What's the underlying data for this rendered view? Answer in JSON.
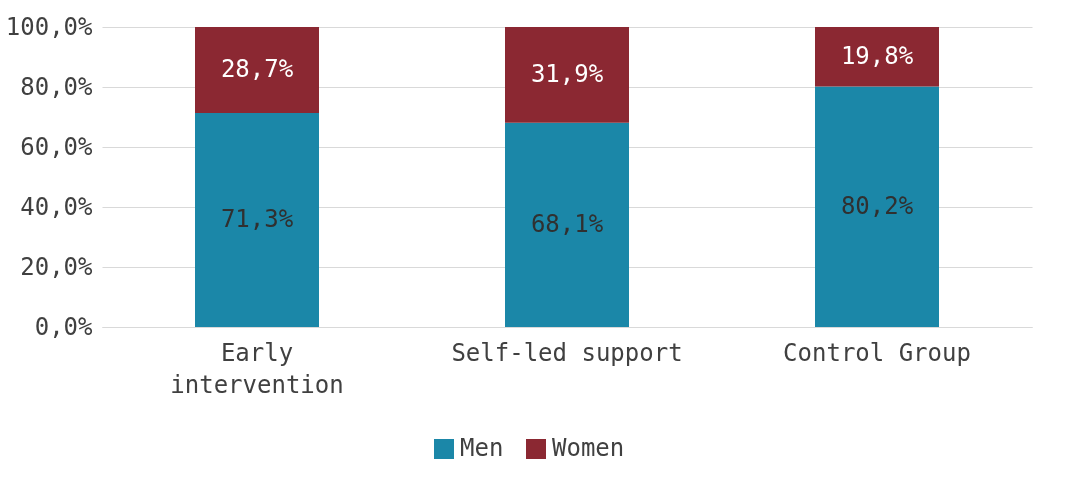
{
  "chart_data": {
    "type": "bar",
    "stacked": true,
    "categories": [
      "Early intervention",
      "Self-led support",
      "Control Group"
    ],
    "series": [
      {
        "name": "Men",
        "color": "#1b87a8",
        "values": [
          71.3,
          68.1,
          80.2
        ],
        "value_labels": [
          "71,3%",
          "68,1%",
          "80,2%"
        ]
      },
      {
        "name": "Women",
        "color": "#8b2832",
        "values": [
          28.7,
          31.9,
          19.8
        ],
        "value_labels": [
          "28,7%",
          "31,9%",
          "19,8%"
        ]
      }
    ],
    "ylim": [
      0,
      100
    ],
    "yticks": [
      {
        "value": 0,
        "label": "0,0%"
      },
      {
        "value": 20,
        "label": "20,0%"
      },
      {
        "value": 40,
        "label": "40,0%"
      },
      {
        "value": 60,
        "label": "60,0%"
      },
      {
        "value": 80,
        "label": "80,0%"
      },
      {
        "value": 100,
        "label": "100,0%"
      }
    ],
    "grid": "y",
    "legend": "bottom"
  }
}
